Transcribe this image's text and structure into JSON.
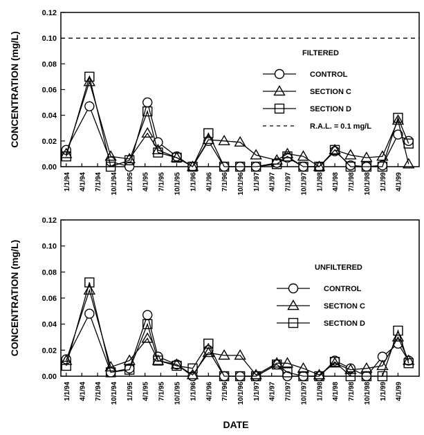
{
  "chart_data": [
    {
      "type": "line",
      "legend_title": "FILTERED",
      "ylabel": "CONCENTRATION (mg/L)",
      "xlabel": "",
      "ylim": [
        0,
        0.12
      ],
      "yticks": [
        "0.00",
        "0.02",
        "0.04",
        "0.06",
        "0.08",
        "0.10",
        "0.12"
      ],
      "x_tick_labels": [
        "1/1/94",
        "4/1/94",
        "7/1/94",
        "10/1/94",
        "1/1/95",
        "4/1/95",
        "7/1/95",
        "10/1/95",
        "1/1/96",
        "4/1/96",
        "7/1/96",
        "10/1/96",
        "1/1/97",
        "4/1/97",
        "7/1/97",
        "10/1/97",
        "1/1/98",
        "4/1/98",
        "7/1/98",
        "10/1/98",
        "1/1/99",
        "4/1/99"
      ],
      "legend_position": "right",
      "reference_line": {
        "value": 0.1,
        "label": "R.A.L. = 0.1 mg/L"
      },
      "series": [
        {
          "name": "CONTROL",
          "marker": "circle",
          "points": [
            [
              "1994-01-01",
              0.013
            ],
            [
              "1994-05-15",
              0.047
            ],
            [
              "1994-09-15",
              0.004
            ],
            [
              "1995-01-01",
              0.0
            ],
            [
              "1995-04-15",
              0.05
            ],
            [
              "1995-06-15",
              0.019
            ],
            [
              "1995-10-01",
              0.008
            ],
            [
              "1996-01-01",
              0.0
            ],
            [
              "1996-04-01",
              0.02
            ],
            [
              "1996-07-01",
              0.0
            ],
            [
              "1996-10-01",
              0.0
            ],
            [
              "1997-01-01",
              0.0
            ],
            [
              "1997-05-01",
              0.003
            ],
            [
              "1997-07-01",
              0.007
            ],
            [
              "1997-10-01",
              0.0
            ],
            [
              "1998-01-01",
              0.0
            ],
            [
              "1998-04-01",
              0.012
            ],
            [
              "1998-07-01",
              0.001
            ],
            [
              "1998-10-01",
              0.0
            ],
            [
              "1999-01-01",
              0.001
            ],
            [
              "1999-04-01",
              0.025
            ],
            [
              "1999-06-01",
              0.02
            ]
          ]
        },
        {
          "name": "SECTION C",
          "marker": "triangle",
          "points": [
            [
              "1994-01-01",
              0.01
            ],
            [
              "1994-05-15",
              0.066
            ],
            [
              "1994-09-15",
              0.008
            ],
            [
              "1995-01-01",
              0.006
            ],
            [
              "1995-04-15",
              0.026
            ],
            [
              "1995-06-15",
              0.013
            ],
            [
              "1995-10-01",
              0.007
            ],
            [
              "1996-01-01",
              0.0
            ],
            [
              "1996-04-01",
              0.021
            ],
            [
              "1996-07-01",
              0.02
            ],
            [
              "1996-10-01",
              0.019
            ],
            [
              "1997-01-01",
              0.009
            ],
            [
              "1997-05-01",
              0.005
            ],
            [
              "1997-07-01",
              0.01
            ],
            [
              "1997-10-01",
              0.008
            ],
            [
              "1998-01-01",
              0.0
            ],
            [
              "1998-04-01",
              0.013
            ],
            [
              "1998-07-01",
              0.009
            ],
            [
              "1998-10-01",
              0.007
            ],
            [
              "1999-01-01",
              0.008
            ],
            [
              "1999-04-01",
              0.036
            ],
            [
              "1999-06-01",
              0.002
            ]
          ]
        },
        {
          "name": "SECTION D",
          "marker": "square",
          "points": [
            [
              "1994-01-01",
              0.008
            ],
            [
              "1994-05-15",
              0.07
            ],
            [
              "1994-09-15",
              0.0
            ],
            [
              "1995-01-01",
              0.005
            ],
            [
              "1995-04-15",
              0.043
            ],
            [
              "1995-06-15",
              0.011
            ],
            [
              "1995-10-01",
              0.007
            ],
            [
              "1996-01-01",
              0.0
            ],
            [
              "1996-04-01",
              0.026
            ],
            [
              "1996-07-01",
              0.0
            ],
            [
              "1996-10-01",
              0.0
            ],
            [
              "1997-01-01",
              0.0
            ],
            [
              "1997-05-01",
              0.002
            ],
            [
              "1997-07-01",
              0.008
            ],
            [
              "1997-10-01",
              0.0
            ],
            [
              "1998-01-01",
              0.0
            ],
            [
              "1998-04-01",
              0.013
            ],
            [
              "1998-07-01",
              0.0
            ],
            [
              "1998-10-01",
              0.0
            ],
            [
              "1999-01-01",
              0.0
            ],
            [
              "1999-04-01",
              0.038
            ],
            [
              "1999-06-01",
              0.018
            ]
          ]
        }
      ]
    },
    {
      "type": "line",
      "legend_title": "UNFILTERED",
      "ylabel": "CONCENTRATION (mg/L)",
      "xlabel": "DATE",
      "ylim": [
        0,
        0.12
      ],
      "yticks": [
        "0.00",
        "0.02",
        "0.04",
        "0.06",
        "0.08",
        "0.10",
        "0.12"
      ],
      "x_tick_labels": [
        "1/1/94",
        "4/1/94",
        "7/1/94",
        "10/1/94",
        "1/1/95",
        "4/1/95",
        "7/1/95",
        "10/1/95",
        "1/1/96",
        "4/1/96",
        "7/1/96",
        "10/1/96",
        "1/1/97",
        "4/1/97",
        "7/1/97",
        "10/1/97",
        "1/1/98",
        "4/1/98",
        "7/1/98",
        "10/1/98",
        "1/1/99",
        "4/1/99"
      ],
      "legend_position": "right",
      "series": [
        {
          "name": "CONTROL",
          "marker": "circle",
          "points": [
            [
              "1994-01-01",
              0.013
            ],
            [
              "1994-05-15",
              0.048
            ],
            [
              "1994-09-15",
              0.003
            ],
            [
              "1995-01-01",
              0.006
            ],
            [
              "1995-04-15",
              0.047
            ],
            [
              "1995-06-15",
              0.015
            ],
            [
              "1995-10-01",
              0.009
            ],
            [
              "1996-01-01",
              0.0
            ],
            [
              "1996-04-01",
              0.02
            ],
            [
              "1996-07-01",
              0.0
            ],
            [
              "1996-10-01",
              0.0
            ],
            [
              "1997-01-01",
              0.0
            ],
            [
              "1997-05-01",
              0.009
            ],
            [
              "1997-07-01",
              0.0
            ],
            [
              "1997-10-01",
              0.0
            ],
            [
              "1998-01-01",
              0.0
            ],
            [
              "1998-04-01",
              0.012
            ],
            [
              "1998-07-01",
              0.006
            ],
            [
              "1998-10-01",
              0.0
            ],
            [
              "1999-01-01",
              0.015
            ],
            [
              "1999-04-01",
              0.025
            ],
            [
              "1999-06-01",
              0.012
            ]
          ]
        },
        {
          "name": "SECTION C",
          "marker": "triangle",
          "points": [
            [
              "1994-01-01",
              0.012
            ],
            [
              "1994-05-15",
              0.066
            ],
            [
              "1994-09-15",
              0.007
            ],
            [
              "1995-01-01",
              0.012
            ],
            [
              "1995-04-15",
              0.029
            ],
            [
              "1995-06-15",
              0.012
            ],
            [
              "1995-10-01",
              0.009
            ],
            [
              "1996-01-01",
              0.001
            ],
            [
              "1996-04-01",
              0.018
            ],
            [
              "1996-07-01",
              0.016
            ],
            [
              "1996-10-01",
              0.016
            ],
            [
              "1997-01-01",
              0.001
            ],
            [
              "1997-05-01",
              0.01
            ],
            [
              "1997-07-01",
              0.01
            ],
            [
              "1997-10-01",
              0.006
            ],
            [
              "1998-01-01",
              0.001
            ],
            [
              "1998-04-01",
              0.01
            ],
            [
              "1998-07-01",
              0.005
            ],
            [
              "1998-10-01",
              0.006
            ],
            [
              "1999-01-01",
              0.008
            ],
            [
              "1999-04-01",
              0.03
            ],
            [
              "1999-06-01",
              0.012
            ]
          ]
        },
        {
          "name": "SECTION D",
          "marker": "square",
          "points": [
            [
              "1994-01-01",
              0.008
            ],
            [
              "1994-05-15",
              0.072
            ],
            [
              "1994-09-15",
              0.003
            ],
            [
              "1995-01-01",
              0.005
            ],
            [
              "1995-04-15",
              0.04
            ],
            [
              "1995-06-15",
              0.012
            ],
            [
              "1995-10-01",
              0.008
            ],
            [
              "1996-01-01",
              0.006
            ],
            [
              "1996-04-01",
              0.025
            ],
            [
              "1996-07-01",
              0.0
            ],
            [
              "1996-10-01",
              0.0
            ],
            [
              "1997-01-01",
              0.0
            ],
            [
              "1997-05-01",
              0.009
            ],
            [
              "1997-07-01",
              0.003
            ],
            [
              "1997-10-01",
              0.0
            ],
            [
              "1998-01-01",
              0.0
            ],
            [
              "1998-04-01",
              0.011
            ],
            [
              "1998-07-01",
              0.0
            ],
            [
              "1998-10-01",
              0.0
            ],
            [
              "1999-01-01",
              0.0
            ],
            [
              "1999-04-01",
              0.035
            ],
            [
              "1999-06-01",
              0.01
            ]
          ]
        }
      ]
    }
  ]
}
